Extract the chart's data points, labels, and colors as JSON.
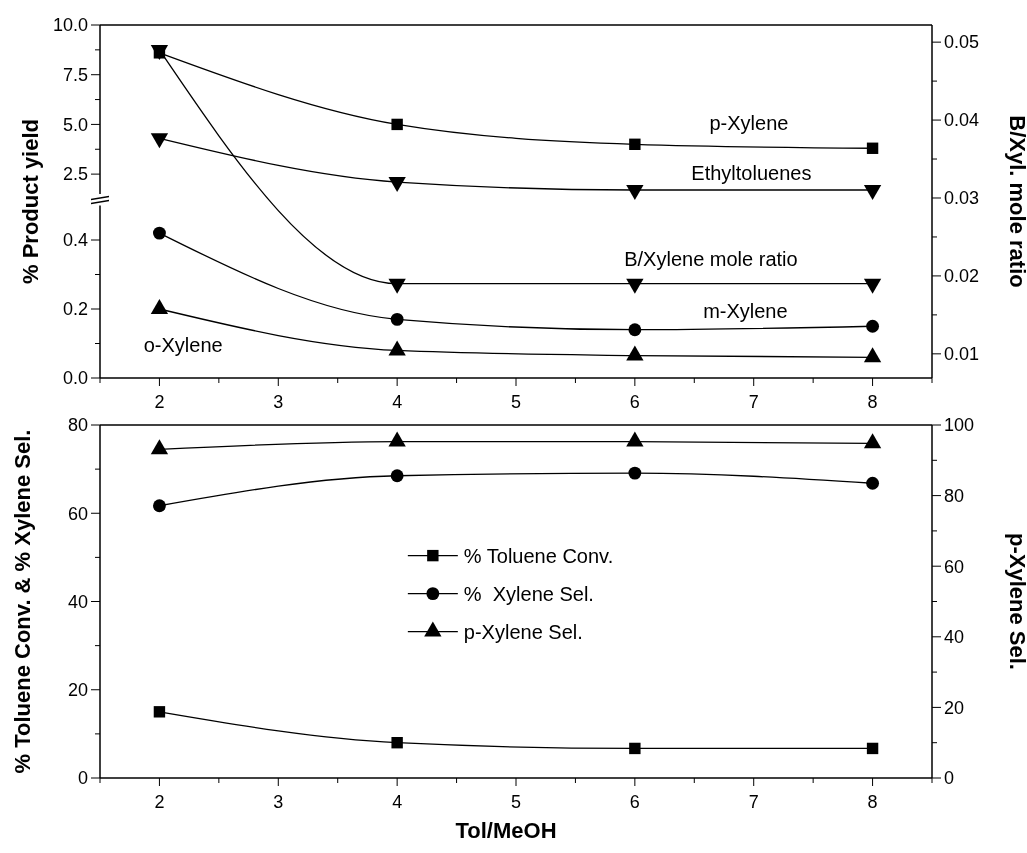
{
  "chart_data": [
    {
      "type": "line",
      "x": [
        2,
        4,
        6,
        8
      ],
      "xlim": [
        1.5,
        8.5
      ],
      "tick_labels": "y",
      "ylim": [
        1.5,
        10
      ],
      "yticks": [
        2.5,
        {
          "value": 3.75,
          "label": null
        },
        {
          "value": 5,
          "label": "5.0"
        },
        {
          "value": 6.25,
          "label": null
        },
        7.5,
        {
          "value": 8.75,
          "label": null
        },
        {
          "value": 10,
          "label": "10.0"
        }
      ],
      "series": [
        {
          "name": "p-Xylene",
          "color": "#000000",
          "marker": "square",
          "values": [
            8.6,
            5.0,
            4.0,
            3.8
          ]
        },
        {
          "name": "Ethyltoluenes",
          "color": "#000000",
          "marker": "triangle-down",
          "values": [
            4.3,
            2.1,
            1.7,
            1.7
          ]
        }
      ]
    },
    {
      "type": "line",
      "ylabel": "% Product yield",
      "y2label": "B/Xyl. mole ratio",
      "x": [
        2,
        4,
        6,
        8
      ],
      "xlim": [
        1.5,
        8.5
      ],
      "xticks": [
        {
          "value": 1.5,
          "label": null
        },
        2,
        {
          "value": 2.5,
          "label": null
        },
        3,
        {
          "value": 3.5,
          "label": null
        },
        4,
        {
          "value": 4.5,
          "label": null
        },
        5,
        {
          "value": 5.5,
          "label": null
        },
        6,
        {
          "value": 6.5,
          "label": null
        },
        7,
        {
          "value": 7.5,
          "label": null
        },
        8,
        {
          "value": 8.5,
          "label": null
        }
      ],
      "ylim": [
        0,
        0.5
      ],
      "yticks": [
        {
          "value": 0,
          "label": "0.0"
        },
        {
          "value": 0.1,
          "label": null
        },
        0.2,
        {
          "value": 0.3,
          "label": null
        },
        0.4
      ],
      "y2lim": [
        0.0069,
        0.0522
      ],
      "y2ticks": [
        0.01,
        {
          "value": 0.015,
          "label": null
        },
        0.02,
        {
          "value": 0.025,
          "label": null
        },
        0.03,
        {
          "value": 0.035,
          "label": null
        },
        0.04,
        {
          "value": 0.045,
          "label": null
        },
        0.05
      ],
      "series": [
        {
          "name": "B/Xylene mole ratio",
          "color": "#000000",
          "axis": "y2",
          "marker": "triangle-down",
          "values": [
            0.049,
            0.019,
            0.019,
            0.019
          ]
        },
        {
          "name": "m-Xylene",
          "color": "#000000",
          "axis": "y",
          "marker": "circle",
          "values": [
            0.42,
            0.17,
            0.14,
            0.15
          ]
        },
        {
          "name": "o-Xylene",
          "color": "#000000",
          "axis": "y",
          "marker": "triangle",
          "values": [
            0.2,
            0.08,
            0.065,
            0.06
          ]
        }
      ]
    },
    {
      "type": "line",
      "xlabel": "Tol/MeOH",
      "ylabel": "% Toluene Conv. & % Xylene Sel.",
      "y2label": "p-Xylene Sel.",
      "x": [
        2,
        4,
        6,
        8
      ],
      "xlim": [
        1.5,
        8.5
      ],
      "xticks": [
        {
          "value": 1.5,
          "label": null
        },
        2,
        {
          "value": 2.5,
          "label": null
        },
        3,
        {
          "value": 3.5,
          "label": null
        },
        4,
        {
          "value": 4.5,
          "label": null
        },
        5,
        {
          "value": 5.5,
          "label": null
        },
        6,
        {
          "value": 6.5,
          "label": null
        },
        7,
        {
          "value": 7.5,
          "label": null
        },
        8,
        {
          "value": 8.5,
          "label": null
        }
      ],
      "ylim": [
        0,
        80
      ],
      "yticks": [
        0,
        {
          "value": 10,
          "label": null
        },
        20,
        {
          "value": 30,
          "label": null
        },
        40,
        {
          "value": 50,
          "label": null
        },
        60,
        {
          "value": 70,
          "label": null
        },
        80
      ],
      "y2lim": [
        0,
        100
      ],
      "y2ticks": [
        0,
        {
          "value": 10,
          "label": null
        },
        20,
        {
          "value": 30,
          "label": null
        },
        40,
        {
          "value": 50,
          "label": null
        },
        60,
        {
          "value": 70,
          "label": null
        },
        80,
        {
          "value": 90,
          "label": null
        },
        100
      ],
      "legend": "center",
      "series": [
        {
          "name": "% Toluene Conv.",
          "color": "#000000",
          "axis": "y",
          "marker": "square",
          "values": [
            15.0,
            8.0,
            6.7,
            6.7
          ]
        },
        {
          "name": "%  Xylene Sel.",
          "color": "#000000",
          "axis": "y",
          "marker": "circle",
          "values": [
            61.7,
            68.5,
            69.1,
            66.8
          ]
        },
        {
          "name": "p-Xylene Sel.",
          "color": "#000000",
          "axis": "y2",
          "marker": "triangle",
          "values": [
            93.1,
            95.3,
            95.3,
            94.8
          ]
        }
      ]
    }
  ]
}
